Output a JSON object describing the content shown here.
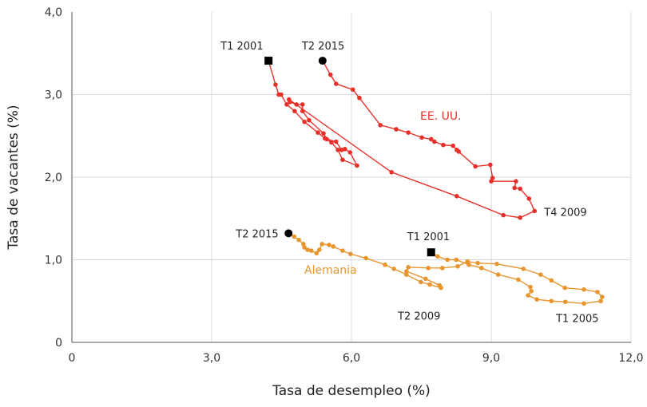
{
  "chart_data": {
    "type": "line",
    "xlabel": "Tasa de desempleo (%)",
    "ylabel": "Tasa de vacantes (%)",
    "xlim": [
      0,
      12
    ],
    "ylim": [
      0,
      4
    ],
    "xticks": [
      0,
      3,
      6,
      9,
      12
    ],
    "xtick_labels": [
      "0",
      "3,0",
      "6,0",
      "9,0",
      "12,0"
    ],
    "yticks": [
      0,
      1,
      2,
      3,
      4
    ],
    "ytick_labels": [
      "0",
      "1,0",
      "2,0",
      "3,0",
      "4,0"
    ],
    "grid": true,
    "series": [
      {
        "name": "EE. UU.",
        "color": "#e8302a",
        "start_label": "T1 2001",
        "end_label": "T2 2015",
        "annotations": [
          {
            "label": "T4 2009",
            "point_index": 29
          }
        ],
        "x": [
          4.22,
          4.37,
          4.44,
          4.49,
          4.61,
          4.78,
          4.99,
          5.28,
          5.43,
          5.57,
          5.71,
          5.81,
          6.12,
          5.97,
          5.86,
          5.79,
          5.67,
          5.47,
          5.4,
          5.09,
          4.95,
          4.95,
          4.82,
          4.68,
          4.66,
          6.86,
          8.26,
          9.26,
          9.62,
          9.93,
          9.81,
          9.62,
          9.5,
          9.53,
          9.0,
          9.03,
          8.98,
          8.66,
          8.3,
          8.26,
          8.18,
          7.97,
          7.78,
          7.71,
          7.51,
          7.22,
          6.96,
          6.62,
          6.17,
          6.03,
          5.67,
          5.55,
          5.38
        ],
        "y": [
          3.41,
          3.12,
          3.0,
          3.0,
          2.88,
          2.8,
          2.67,
          2.54,
          2.47,
          2.42,
          2.33,
          2.21,
          2.14,
          2.3,
          2.34,
          2.33,
          2.43,
          2.46,
          2.53,
          2.69,
          2.8,
          2.88,
          2.88,
          2.91,
          2.94,
          2.06,
          1.77,
          1.54,
          1.51,
          1.59,
          1.74,
          1.86,
          1.87,
          1.95,
          1.95,
          1.99,
          2.15,
          2.13,
          2.31,
          2.33,
          2.38,
          2.39,
          2.43,
          2.46,
          2.48,
          2.54,
          2.58,
          2.63,
          2.96,
          3.06,
          3.13,
          3.24,
          3.41
        ]
      },
      {
        "name": "Alemania",
        "color": "#e8952e",
        "start_label": "T1 2001",
        "end_label": "T2 2015",
        "annotations": [
          {
            "label": "T1 2005",
            "point_index": 15
          },
          {
            "label": "T2 2009",
            "point_index": 33
          }
        ],
        "x": [
          7.71,
          7.85,
          8.06,
          8.25,
          8.52,
          8.79,
          9.15,
          9.58,
          9.84,
          9.86,
          9.79,
          9.98,
          10.29,
          10.59,
          10.99,
          11.35,
          11.38,
          11.28,
          10.99,
          10.58,
          10.29,
          10.06,
          9.69,
          9.12,
          8.71,
          8.49,
          8.28,
          7.95,
          7.65,
          7.22,
          7.18,
          7.59,
          7.89,
          7.92,
          7.68,
          7.49,
          7.18,
          6.91,
          6.72,
          6.31,
          5.98,
          5.81,
          5.61,
          5.52,
          5.37,
          5.31,
          5.25,
          5.14,
          5.06,
          4.99,
          4.97,
          4.87,
          4.77,
          4.65
        ],
        "y": [
          1.09,
          1.04,
          1.0,
          1.0,
          0.94,
          0.9,
          0.82,
          0.76,
          0.67,
          0.62,
          0.57,
          0.52,
          0.5,
          0.49,
          0.47,
          0.5,
          0.55,
          0.61,
          0.64,
          0.66,
          0.75,
          0.82,
          0.89,
          0.95,
          0.96,
          0.98,
          0.92,
          0.9,
          0.9,
          0.91,
          0.86,
          0.77,
          0.69,
          0.66,
          0.7,
          0.73,
          0.82,
          0.89,
          0.94,
          1.02,
          1.07,
          1.11,
          1.16,
          1.18,
          1.19,
          1.12,
          1.08,
          1.11,
          1.12,
          1.15,
          1.19,
          1.24,
          1.28,
          1.32
        ]
      }
    ]
  }
}
